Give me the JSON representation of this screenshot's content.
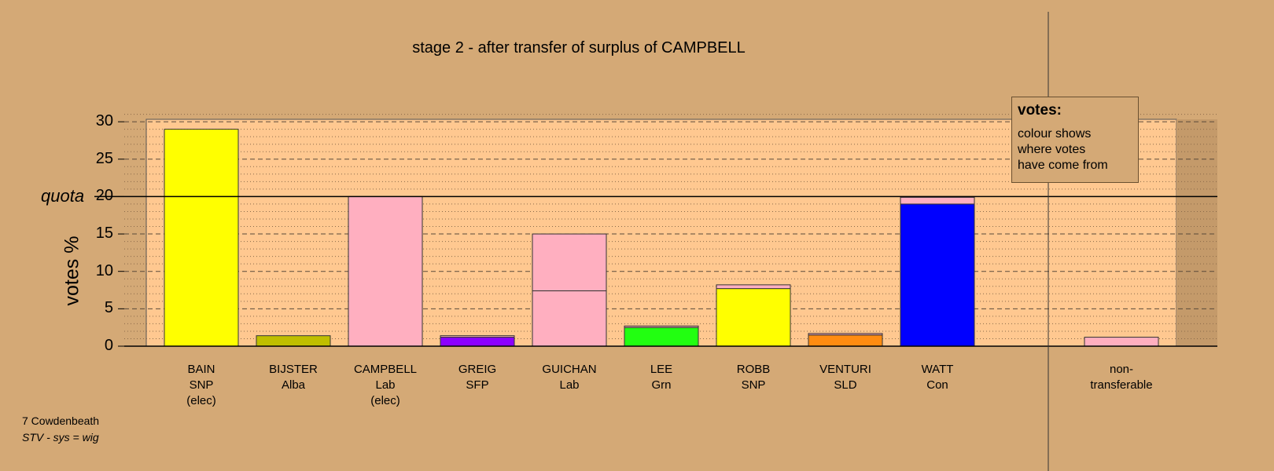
{
  "chart_data": {
    "type": "bar",
    "title": "stage 2 - after transfer of surplus of CAMPBELL",
    "ylabel": "votes %",
    "ylim": [
      0,
      30
    ],
    "yticks": [
      "0",
      "5",
      "10",
      "15",
      "20",
      "25",
      "30"
    ],
    "quota_label": "quota",
    "quota_value": 20,
    "grid": "dashed major, dotted minor",
    "candidates": [
      {
        "name": "BAIN",
        "party": "SNP",
        "status": "(elec)",
        "segments": [
          {
            "value": 29.0,
            "color": "#ffff00"
          }
        ]
      },
      {
        "name": "BIJSTER",
        "party": "Alba",
        "status": "",
        "segments": [
          {
            "value": 1.4,
            "color": "#bfbf00"
          }
        ]
      },
      {
        "name": "CAMPBELL",
        "party": "Lab",
        "status": "(elec)",
        "segments": [
          {
            "value": 20.0,
            "color": "#ffafc0"
          }
        ]
      },
      {
        "name": "GREIG",
        "party": "SFP",
        "status": "",
        "segments": [
          {
            "value": 1.2,
            "color": "#8c00ff"
          },
          {
            "value": 0.2,
            "color": "#ffafc0"
          }
        ]
      },
      {
        "name": "GUICHAN",
        "party": "Lab",
        "status": "",
        "segments": [
          {
            "value": 7.4,
            "color": "#ffafc0"
          },
          {
            "value": 7.6,
            "color": "#ffafc0"
          }
        ]
      },
      {
        "name": "LEE",
        "party": "Grn",
        "status": "",
        "segments": [
          {
            "value": 2.5,
            "color": "#22ff11"
          },
          {
            "value": 0.2,
            "color": "#ffafc0"
          }
        ]
      },
      {
        "name": "ROBB",
        "party": "SNP",
        "status": "",
        "segments": [
          {
            "value": 7.7,
            "color": "#ffff00"
          },
          {
            "value": 0.5,
            "color": "#ffafc0"
          }
        ]
      },
      {
        "name": "VENTURI",
        "party": "SLD",
        "status": "",
        "segments": [
          {
            "value": 1.5,
            "color": "#ff8c11"
          },
          {
            "value": 0.2,
            "color": "#ffafc0"
          }
        ]
      },
      {
        "name": "WATT",
        "party": "Con",
        "status": "",
        "segments": [
          {
            "value": 19.0,
            "color": "#0000ff"
          },
          {
            "value": 0.9,
            "color": "#ffafc0"
          }
        ]
      },
      {
        "name": "non-",
        "party": "transferable",
        "status": "",
        "segments": [
          {
            "value": 1.2,
            "color": "#ffafc0"
          }
        ]
      }
    ],
    "legend": {
      "title": "votes:",
      "lines": [
        "colour shows",
        "where votes",
        "have come from"
      ]
    }
  },
  "footer": {
    "constituency": "7 Cowdenbeath",
    "system": "STV - sys = wig"
  },
  "colors": {
    "background": "#d4a976",
    "plot_bg": "#ffc890"
  }
}
